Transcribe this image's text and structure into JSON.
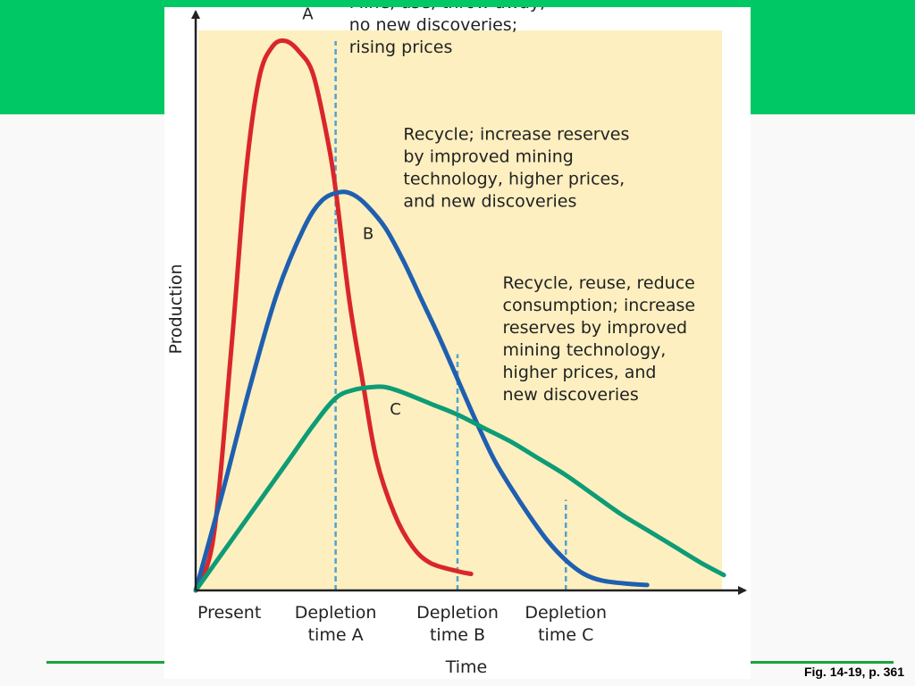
{
  "theme": {
    "band_color": "#00c864",
    "rule_color": "#1aa33a",
    "plot_background": "#fdefc0",
    "axis_color": "#222222",
    "depletion_line_color": "#4fa3d1"
  },
  "caption": "Fig. 14-19, p. 361",
  "chart_data": {
    "type": "line",
    "title": "",
    "xlabel": "Time",
    "ylabel": "Production",
    "x_tick_labels": [
      {
        "x": 0,
        "lines": [
          "Present"
        ]
      },
      {
        "x": 1.55,
        "lines": [
          "Depletion",
          "time A"
        ]
      },
      {
        "x": 2.9,
        "lines": [
          "Depletion",
          "time B"
        ]
      },
      {
        "x": 4.1,
        "lines": [
          "Depletion",
          "time C"
        ]
      }
    ],
    "xlim": [
      0,
      5.8
    ],
    "ylim": [
      0,
      100
    ],
    "grid": false,
    "series": [
      {
        "name": "A",
        "color": "#d9262b",
        "x": [
          0,
          0.2,
          0.4,
          0.55,
          0.7,
          0.85,
          1.0,
          1.15,
          1.3,
          1.45,
          1.55,
          1.7,
          1.85,
          2.0,
          2.2,
          2.4,
          2.6,
          2.9,
          3.05
        ],
        "y": [
          0,
          10,
          45,
          75,
          93,
          99,
          100,
          98,
          94,
          83,
          73,
          53,
          38,
          24,
          14,
          8,
          5,
          3.5,
          3
        ]
      },
      {
        "name": "B",
        "color": "#1f5fb0",
        "x": [
          0,
          0.3,
          0.6,
          0.9,
          1.2,
          1.4,
          1.6,
          1.75,
          1.9,
          2.1,
          2.3,
          2.5,
          2.7,
          2.9,
          3.1,
          3.3,
          3.5,
          3.7,
          3.9,
          4.1,
          4.3,
          4.5,
          4.8,
          5.0
        ],
        "y": [
          0,
          18,
          37,
          54,
          66,
          71,
          72.5,
          72,
          70,
          66,
          60,
          53,
          46,
          38.5,
          31,
          24,
          18.5,
          13.5,
          9,
          5.5,
          3,
          1.8,
          1.2,
          1
        ]
      },
      {
        "name": "C",
        "color": "#0d9c75",
        "x": [
          0,
          0.5,
          1.0,
          1.3,
          1.55,
          1.75,
          1.95,
          2.1,
          2.3,
          2.6,
          2.9,
          3.2,
          3.5,
          3.8,
          4.1,
          4.4,
          4.7,
          5.0,
          5.3,
          5.6,
          5.85
        ],
        "y": [
          0,
          11.5,
          23,
          30,
          35,
          36.5,
          37,
          37,
          36,
          34,
          32,
          29.5,
          27,
          24,
          21,
          17.5,
          14,
          11,
          8,
          5,
          2.8
        ]
      }
    ],
    "depletion_markers": [
      {
        "x": 1.55,
        "y": 100
      },
      {
        "x": 2.9,
        "y": 43
      },
      {
        "x": 4.1,
        "y": 16.5
      }
    ],
    "curve_labels": [
      {
        "text": "A",
        "x": 1.18,
        "y": 104
      },
      {
        "text": "B",
        "x": 1.85,
        "y": 64
      },
      {
        "text": "C",
        "x": 2.15,
        "y": 32
      }
    ],
    "annotations": [
      {
        "x": 1.7,
        "y": 106,
        "lines": [
          "Mine, use, throw away;",
          "no new discoveries;",
          "rising prices"
        ]
      },
      {
        "x": 2.3,
        "y": 82,
        "lines": [
          "Recycle; increase reserves",
          "by improved mining",
          "technology, higher prices,",
          "and new discoveries"
        ]
      },
      {
        "x": 3.4,
        "y": 55,
        "lines": [
          "Recycle, reuse, reduce",
          "consumption; increase",
          "reserves by improved",
          "mining technology,",
          "higher prices, and",
          "new discoveries"
        ]
      }
    ]
  }
}
